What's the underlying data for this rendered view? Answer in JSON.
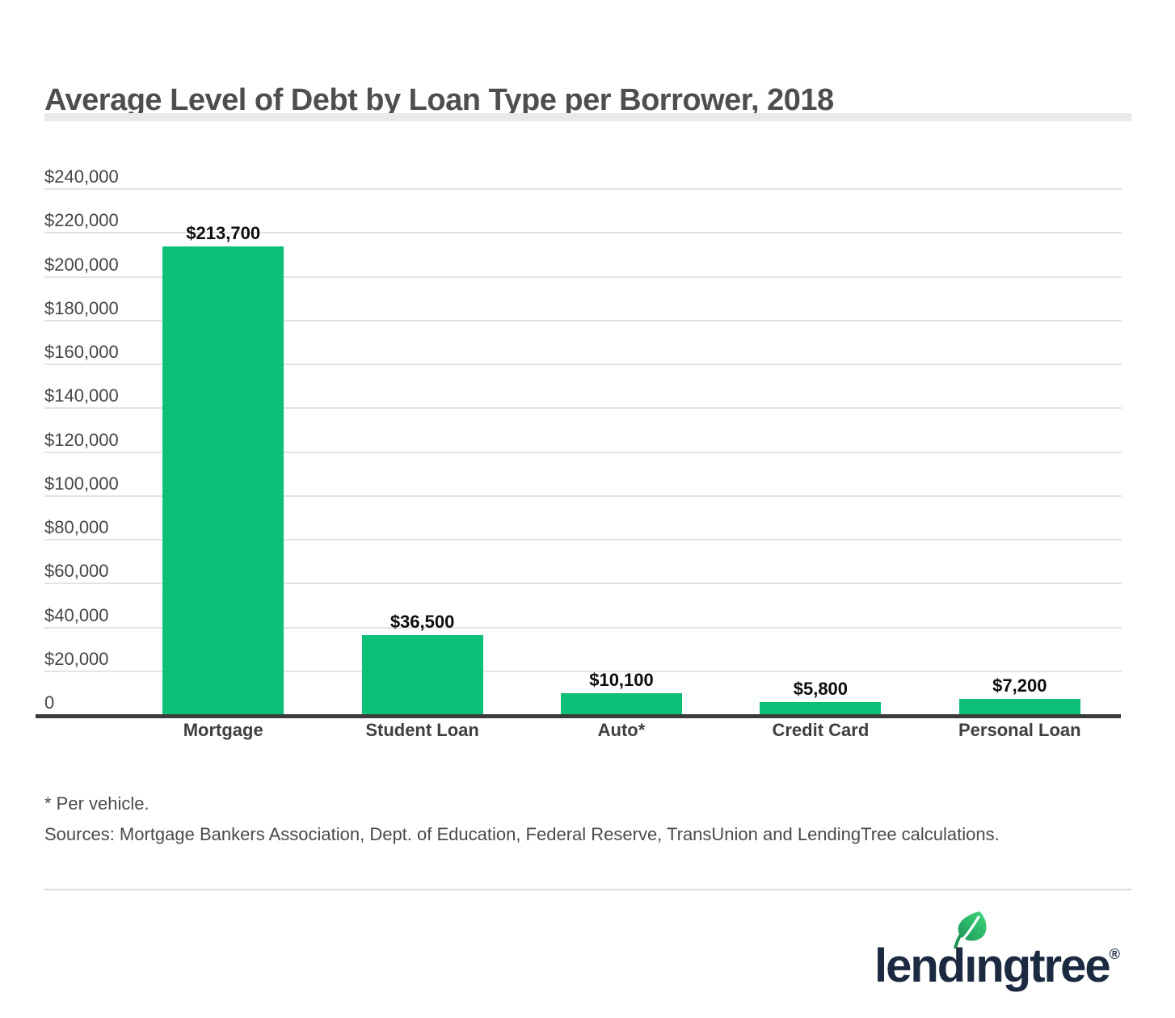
{
  "header": {
    "title": "Average Level of Debt by Loan Type per Borrower, 2018"
  },
  "chart_data": {
    "type": "bar",
    "title": "Average Level of Debt by Loan Type per Borrower, 2018",
    "categories": [
      "Mortgage",
      "Student Loan",
      "Auto*",
      "Credit Card",
      "Personal Loan"
    ],
    "values": [
      213700,
      36500,
      10100,
      5800,
      7200
    ],
    "value_labels": [
      "$213,700",
      "$36,500",
      "$10,100",
      "$5,800",
      "$7,200"
    ],
    "xlabel": "",
    "ylabel": "",
    "ylim": [
      0,
      240000
    ],
    "ytick_step": 20000,
    "ytick_labels": [
      "0",
      "$20,000",
      "$40,000",
      "$60,000",
      "$80,000",
      "$100,000",
      "$120,000",
      "$140,000",
      "$160,000",
      "$180,000",
      "$200,000",
      "$220,000",
      "$240,000"
    ],
    "grid": "horizontal gridlines on, zero line dark",
    "legend": "none",
    "bar_color": "#0dbf77"
  },
  "footnotes": {
    "note": "* Per vehicle.",
    "sources": "Sources: Mortgage Bankers Association, Dept. of Education, Federal Reserve, TransUnion and LendingTree calculations."
  },
  "logo": {
    "wordmark": "lendıngtree",
    "registered": "®",
    "leaf_icon": "leaf-icon",
    "colors": {
      "navy": "#1b2941",
      "leaf_green_dark": "#1f9155",
      "leaf_green_light": "#3fd47f",
      "bar_green": "#0dbf77"
    }
  }
}
